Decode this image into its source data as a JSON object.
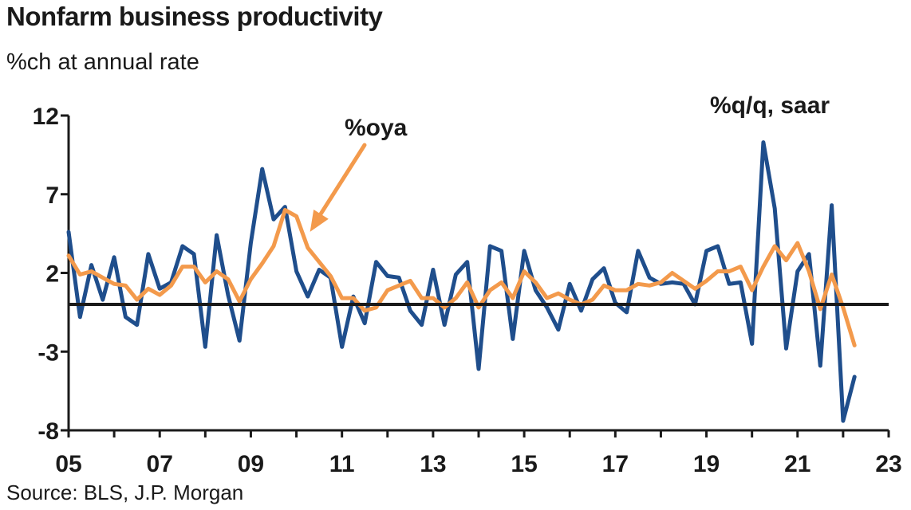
{
  "chart_data": {
    "type": "line",
    "title": "Nonfarm business productivity",
    "subtitle": "%ch at annual rate",
    "source": "Source: BLS, J.P. Morgan",
    "ylim": [
      -8,
      12
    ],
    "y_ticks": [
      12,
      7,
      2,
      -3,
      -8
    ],
    "x_range": [
      2005.0,
      2023.0
    ],
    "x_ticks": [
      {
        "label": "05",
        "value": 2005
      },
      {
        "label": "07",
        "value": 2007
      },
      {
        "label": "09",
        "value": 2009
      },
      {
        "label": "11",
        "value": 2011
      },
      {
        "label": "13",
        "value": 2013
      },
      {
        "label": "15",
        "value": 2015
      },
      {
        "label": "17",
        "value": 2017
      },
      {
        "label": "19",
        "value": 2019
      },
      {
        "label": "21",
        "value": 2021
      },
      {
        "label": "23",
        "value": 2023
      }
    ],
    "zero_line": 0,
    "grid": false,
    "series": [
      {
        "name": "%q/q, saar",
        "color": "#1f4e8c",
        "x": [
          2005.0,
          2005.25,
          2005.5,
          2005.75,
          2006.0,
          2006.25,
          2006.5,
          2006.75,
          2007.0,
          2007.25,
          2007.5,
          2007.75,
          2008.0,
          2008.25,
          2008.5,
          2008.75,
          2009.0,
          2009.25,
          2009.5,
          2009.75,
          2010.0,
          2010.25,
          2010.5,
          2010.75,
          2011.0,
          2011.25,
          2011.5,
          2011.75,
          2012.0,
          2012.25,
          2012.5,
          2012.75,
          2013.0,
          2013.25,
          2013.5,
          2013.75,
          2014.0,
          2014.25,
          2014.5,
          2014.75,
          2015.0,
          2015.25,
          2015.5,
          2015.75,
          2016.0,
          2016.25,
          2016.5,
          2016.75,
          2017.0,
          2017.25,
          2017.5,
          2017.75,
          2018.0,
          2018.25,
          2018.5,
          2018.75,
          2019.0,
          2019.25,
          2019.5,
          2019.75,
          2020.0,
          2020.25,
          2020.5,
          2020.75,
          2021.0,
          2021.25,
          2021.5,
          2021.75,
          2022.0,
          2022.25
        ],
        "values": [
          4.6,
          -0.8,
          2.5,
          0.3,
          3.0,
          -0.8,
          -1.3,
          3.2,
          1.0,
          1.4,
          3.7,
          3.2,
          -2.7,
          4.4,
          0.6,
          -2.3,
          3.9,
          8.6,
          5.4,
          6.2,
          2.1,
          0.5,
          2.2,
          1.7,
          -2.7,
          0.5,
          -1.2,
          2.7,
          1.8,
          1.7,
          -0.4,
          -1.3,
          2.2,
          -1.3,
          1.9,
          2.7,
          -4.1,
          3.7,
          3.4,
          -2.2,
          3.4,
          0.9,
          -0.2,
          -1.6,
          1.3,
          -0.4,
          1.6,
          2.3,
          0.1,
          -0.5,
          3.4,
          1.7,
          1.3,
          1.4,
          1.3,
          0.0,
          3.4,
          3.7,
          1.3,
          1.4,
          -2.5,
          10.3,
          6.1,
          -2.8,
          2.1,
          3.2,
          -3.9,
          6.3,
          -7.4,
          -4.6
        ]
      },
      {
        "name": "%oya",
        "color": "#f39a4c",
        "x": [
          2005.0,
          2005.25,
          2005.5,
          2005.75,
          2006.0,
          2006.25,
          2006.5,
          2006.75,
          2007.0,
          2007.25,
          2007.5,
          2007.75,
          2008.0,
          2008.25,
          2008.5,
          2008.75,
          2009.0,
          2009.25,
          2009.5,
          2009.75,
          2010.0,
          2010.25,
          2010.5,
          2010.75,
          2011.0,
          2011.25,
          2011.5,
          2011.75,
          2012.0,
          2012.25,
          2012.5,
          2012.75,
          2013.0,
          2013.25,
          2013.5,
          2013.75,
          2014.0,
          2014.25,
          2014.5,
          2014.75,
          2015.0,
          2015.25,
          2015.5,
          2015.75,
          2016.0,
          2016.25,
          2016.5,
          2016.75,
          2017.0,
          2017.25,
          2017.5,
          2017.75,
          2018.0,
          2018.25,
          2018.5,
          2018.75,
          2019.0,
          2019.25,
          2019.5,
          2019.75,
          2020.0,
          2020.25,
          2020.5,
          2020.75,
          2021.0,
          2021.25,
          2021.5,
          2021.75,
          2022.0,
          2022.25
        ],
        "values": [
          3.1,
          1.9,
          2.1,
          1.7,
          1.3,
          1.2,
          0.3,
          1.0,
          0.6,
          1.2,
          2.4,
          2.4,
          1.4,
          2.1,
          1.6,
          0.2,
          1.6,
          2.6,
          3.7,
          6.0,
          5.6,
          3.6,
          2.7,
          1.8,
          0.4,
          0.4,
          -0.4,
          -0.2,
          0.9,
          1.2,
          1.5,
          0.4,
          0.4,
          -0.2,
          0.4,
          1.4,
          -0.2,
          0.9,
          1.4,
          0.4,
          2.1,
          1.4,
          0.4,
          0.7,
          0.3,
          0.0,
          0.3,
          1.2,
          0.9,
          0.9,
          1.3,
          1.2,
          1.4,
          2.0,
          1.5,
          1.0,
          1.5,
          2.1,
          2.1,
          2.4,
          0.9,
          2.4,
          3.7,
          2.8,
          3.9,
          2.1,
          -0.3,
          1.9,
          -0.2,
          -2.6
        ]
      }
    ],
    "annotations": [
      {
        "text": "%oya",
        "points_to_x": 2010.3,
        "points_to_y": 3.7
      },
      {
        "text": "%q/q, saar"
      }
    ]
  }
}
